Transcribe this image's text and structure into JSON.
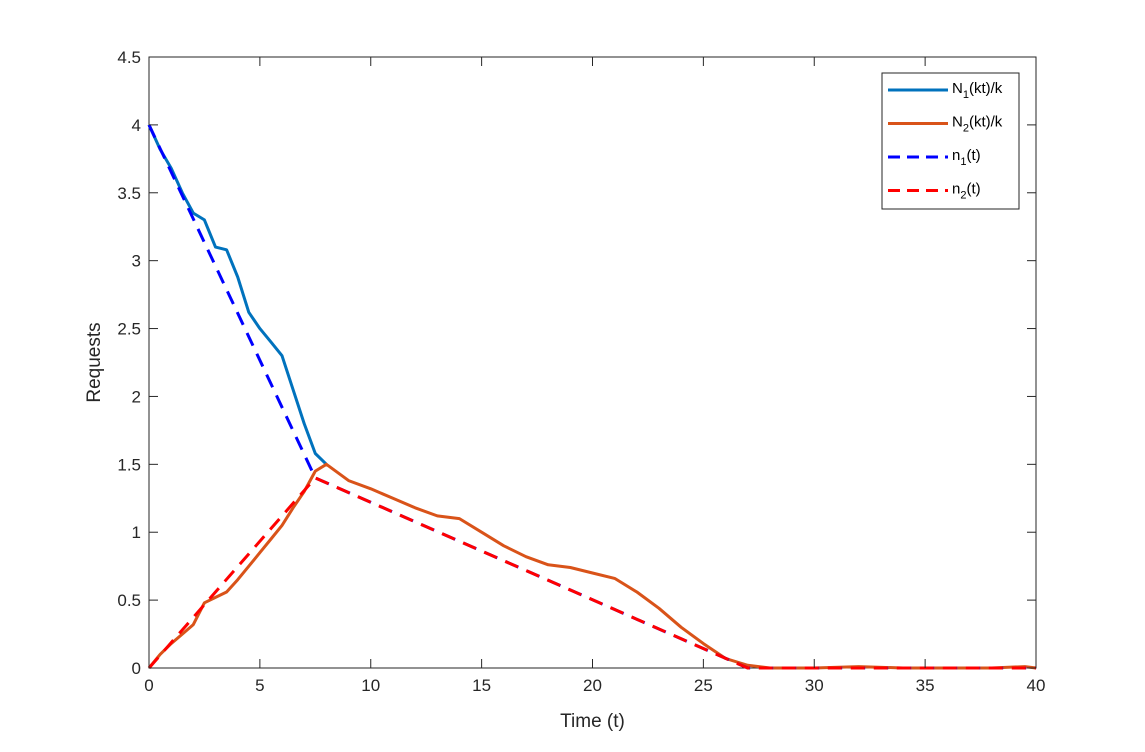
{
  "chart_data": {
    "type": "line",
    "xlabel": "Time (t)",
    "ylabel": "Requests",
    "xlim": [
      0,
      40
    ],
    "ylim": [
      0,
      4.5
    ],
    "xticks": [
      0,
      5,
      10,
      15,
      20,
      25,
      30,
      35,
      40
    ],
    "yticks": [
      0,
      0.5,
      1,
      1.5,
      2,
      2.5,
      3,
      3.5,
      4,
      4.5
    ],
    "xtick_labels": [
      "0",
      "5",
      "10",
      "15",
      "20",
      "25",
      "30",
      "35",
      "40"
    ],
    "ytick_labels": [
      "0",
      "0.5",
      "1",
      "1.5",
      "2",
      "2.5",
      "3",
      "3.5",
      "4",
      "4.5"
    ],
    "grid": false,
    "legend_position": "top-right",
    "series": [
      {
        "label": {
          "main": "N",
          "sub": "1",
          "rest": "(kt)/k"
        },
        "style": "solid",
        "color": "#0072BD",
        "x": [
          0,
          0.5,
          1,
          1.5,
          2,
          2.5,
          3,
          3.5,
          4,
          4.5,
          5,
          5.5,
          6,
          6.5,
          7,
          7.5,
          8
        ],
        "y": [
          4.0,
          3.82,
          3.68,
          3.5,
          3.35,
          3.3,
          3.1,
          3.08,
          2.88,
          2.62,
          2.5,
          2.4,
          2.3,
          2.05,
          1.8,
          1.58,
          1.5
        ]
      },
      {
        "label": {
          "main": "N",
          "sub": "2",
          "rest": "(kt)/k"
        },
        "style": "solid",
        "color": "#D95319",
        "x": [
          0,
          0.5,
          1,
          1.5,
          2,
          2.5,
          3,
          3.5,
          4,
          4.5,
          5,
          5.5,
          6,
          6.5,
          7,
          7.5,
          8,
          9,
          10,
          11,
          12,
          13,
          14,
          15,
          16,
          17,
          18,
          19,
          20,
          21,
          22,
          23,
          24,
          25,
          26,
          27,
          28,
          30,
          32,
          34,
          36,
          38,
          39.5,
          40
        ],
        "y": [
          0,
          0.1,
          0.18,
          0.25,
          0.32,
          0.48,
          0.52,
          0.56,
          0.65,
          0.75,
          0.85,
          0.95,
          1.05,
          1.18,
          1.3,
          1.45,
          1.5,
          1.38,
          1.32,
          1.25,
          1.18,
          1.12,
          1.1,
          1.0,
          0.9,
          0.82,
          0.76,
          0.74,
          0.7,
          0.66,
          0.56,
          0.44,
          0.3,
          0.18,
          0.07,
          0.02,
          0.0,
          0.0,
          0.01,
          0.0,
          0.0,
          0.0,
          0.01,
          0.0
        ]
      },
      {
        "label": {
          "main": "n",
          "sub": "1",
          "rest": "(t)"
        },
        "style": "dashed",
        "color": "#0000FF",
        "x": [
          0,
          7.5,
          27,
          40
        ],
        "y": [
          4.0,
          1.4,
          0,
          0
        ]
      },
      {
        "label": {
          "main": "n",
          "sub": "2",
          "rest": "(t)"
        },
        "style": "dashed",
        "color": "#FF0000",
        "x": [
          0,
          7.5,
          27,
          40
        ],
        "y": [
          0,
          1.4,
          0,
          0
        ]
      }
    ]
  }
}
